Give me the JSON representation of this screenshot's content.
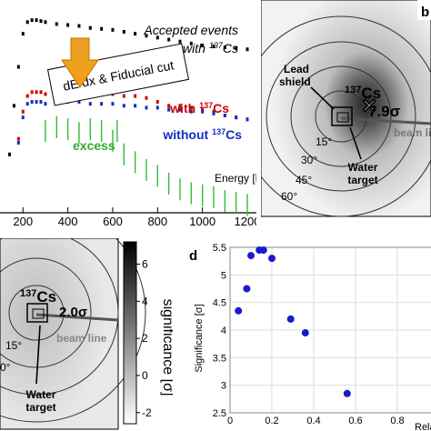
{
  "chart_data": [
    {
      "type": "line",
      "panel": "a",
      "xlabel": "Energy [keV]",
      "x_ticks": [
        "200",
        "400",
        "600",
        "800",
        "1000",
        "1200"
      ],
      "xlim": [
        130,
        1200
      ],
      "annotations": {
        "accepted_line1": "Accepted events",
        "accepted_line2": "with ",
        "accepted_iso": "137",
        "accepted_el": "Cs",
        "cut_label": "dE/dx & Fiducial cut",
        "with_label": "with ",
        "with_iso": "137",
        "with_el": "Cs",
        "without_label": "without ",
        "without_iso": "137",
        "without_el": "Cs",
        "excess_label": "excess"
      },
      "series": [
        {
          "color": "#000000",
          "x": [
            140,
            160,
            180,
            200,
            220,
            240,
            260,
            280,
            300,
            350,
            400,
            450,
            500,
            550,
            600,
            650,
            700,
            750,
            800,
            850,
            900,
            950,
            1000,
            1050,
            1100,
            1150,
            1200
          ],
          "values": [
            0.3,
            0.55,
            0.75,
            0.92,
            0.98,
            0.99,
            0.99,
            0.985,
            0.98,
            0.97,
            0.965,
            0.96,
            0.95,
            0.945,
            0.94,
            0.93,
            0.92,
            0.91,
            0.9,
            0.89,
            0.88,
            0.87,
            0.86,
            0.855,
            0.85,
            0.845,
            0.84
          ]
        },
        {
          "color": "#d00000",
          "x": [
            180,
            200,
            220,
            240,
            260,
            280,
            300,
            350,
            400,
            450,
            500,
            550,
            600,
            650,
            700,
            750,
            800,
            850,
            900,
            950,
            1000,
            1050,
            1100,
            1150,
            1200
          ],
          "values": [
            0.38,
            0.52,
            0.6,
            0.62,
            0.62,
            0.62,
            0.61,
            0.62,
            0.63,
            0.63,
            0.62,
            0.62,
            0.61,
            0.6,
            0.6,
            0.59,
            0.57,
            0.55,
            0.55,
            0.54,
            0.53,
            0.52,
            0.5,
            0.49,
            0.48
          ]
        },
        {
          "color": "#1030c0",
          "x": [
            180,
            200,
            220,
            240,
            260,
            280,
            300,
            350,
            400,
            450,
            500,
            550,
            600,
            650,
            700,
            750,
            800,
            850,
            900,
            950,
            1000,
            1050,
            1100,
            1150,
            1200
          ],
          "values": [
            0.36,
            0.49,
            0.56,
            0.57,
            0.57,
            0.57,
            0.56,
            0.57,
            0.57,
            0.57,
            0.56,
            0.56,
            0.56,
            0.55,
            0.55,
            0.54,
            0.54,
            0.53,
            0.53,
            0.52,
            0.52,
            0.51,
            0.5,
            0.49,
            0.48
          ]
        },
        {
          "color": "#33bb33",
          "x": [
            300,
            350,
            400,
            450,
            500,
            550,
            600,
            620,
            650,
            700,
            750,
            800,
            850,
            900,
            950,
            1000,
            1050,
            1100,
            1150,
            1200
          ],
          "values": [
            0.42,
            0.44,
            0.43,
            0.41,
            0.43,
            0.42,
            0.37,
            0.42,
            0.3,
            0.26,
            0.22,
            0.19,
            0.15,
            0.12,
            0.1,
            0.09,
            0.08,
            0.06,
            0.05,
            0.04
          ]
        }
      ]
    },
    {
      "type": "heatmap",
      "panel": "b",
      "letter": "b",
      "labels": {
        "lead_shield_1": "Lead",
        "lead_shield_2": "shield",
        "source_iso": "137",
        "source_el": "Cs",
        "sigma": "7.9σ",
        "beam_line": "beam line",
        "angle_15": "15°",
        "angle_30": "30°",
        "angle_45": "45°",
        "angle_60": "60°",
        "water_1": "Water",
        "water_2": "target"
      }
    },
    {
      "type": "heatmap",
      "panel": "c",
      "labels": {
        "source_iso": "137",
        "source_el": "Cs",
        "sigma": "2.0σ",
        "beam_line": "beam line",
        "angle_15": "15°",
        "angle_0": "0°",
        "water_1": "Water",
        "water_2": "target",
        "colorbar_label": "significance [σ]",
        "colorbar_ticks": [
          "6",
          "4",
          "2",
          "0",
          "-2"
        ]
      }
    },
    {
      "type": "scatter",
      "panel": "d",
      "letter": "d",
      "ylabel": "Significance [σ]",
      "xlabel": "Relativ",
      "ylim": [
        2.5,
        5.5
      ],
      "xlim": [
        0,
        1.0
      ],
      "y_ticks": [
        "5.5",
        "5",
        "4.5",
        "4",
        "3.5",
        "3",
        "2.5"
      ],
      "x_ticks": [
        "0",
        "0.2",
        "0.4",
        "0.6",
        "0.8"
      ],
      "color": "#1a1acc",
      "x": [
        0.04,
        0.08,
        0.1,
        0.14,
        0.16,
        0.2,
        0.29,
        0.36,
        0.56
      ],
      "y": [
        4.35,
        4.75,
        5.35,
        5.45,
        5.45,
        5.3,
        4.2,
        3.95,
        2.85
      ]
    }
  ]
}
